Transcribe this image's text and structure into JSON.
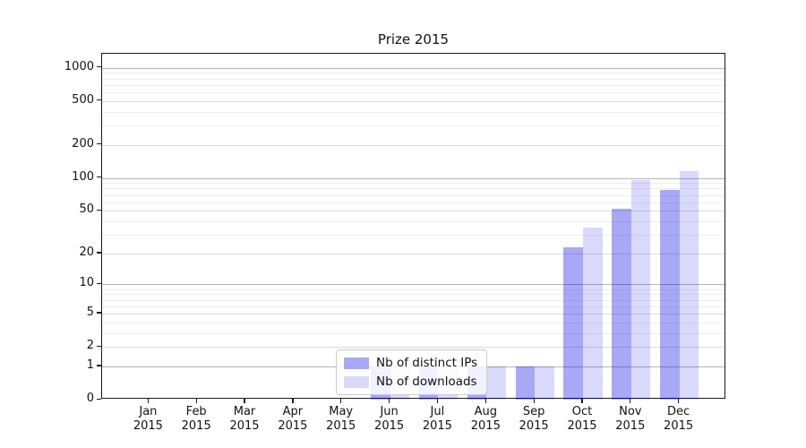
{
  "chart_data": {
    "type": "bar",
    "title": "Prize 2015",
    "categories": [
      "Jan",
      "Feb",
      "Mar",
      "Apr",
      "May",
      "Jun",
      "Jul",
      "Aug",
      "Sep",
      "Oct",
      "Nov",
      "Dec"
    ],
    "category_year": "2015",
    "series": [
      {
        "name": "Nb of distinct IPs",
        "color": "#0000e6",
        "alpha": 0.34,
        "rendered_color": "#a9a9f4",
        "values": [
          0,
          0,
          0,
          0,
          0,
          1,
          1,
          1,
          1,
          23,
          52,
          78
        ]
      },
      {
        "name": "Nb of downloads",
        "color": "#0000e6",
        "alpha": 0.15,
        "rendered_color": "#d9d9fa",
        "values": [
          0,
          0,
          0,
          0,
          0,
          1,
          1,
          1,
          1,
          35,
          95,
          115
        ]
      }
    ],
    "xlabel": "",
    "ylabel": "",
    "y_axis": {
      "scale": "log1p",
      "ticks": [
        0,
        1,
        2,
        5,
        10,
        20,
        50,
        100,
        200,
        500,
        1000
      ],
      "major_gridlines": [
        1,
        10,
        100,
        1000
      ],
      "minor_gridlines": [
        3,
        4,
        6,
        7,
        8,
        9,
        30,
        40,
        60,
        70,
        80,
        90,
        300,
        400,
        600,
        700,
        800,
        900
      ],
      "ylim": [
        0,
        1338
      ]
    },
    "legend": {
      "position": "lower center",
      "entries": [
        "Nb of distinct IPs",
        "Nb of downloads"
      ]
    },
    "grid": true
  }
}
